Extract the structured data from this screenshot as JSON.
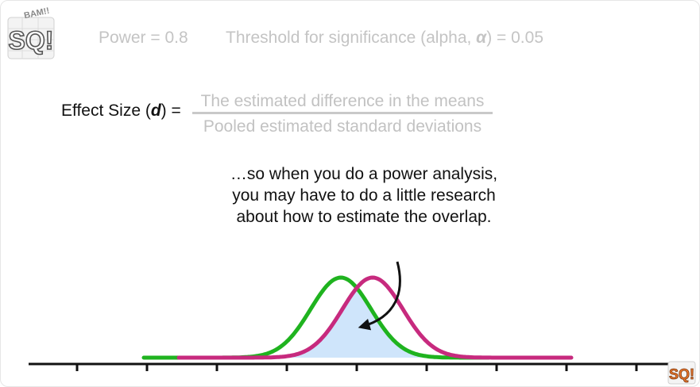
{
  "header": {
    "power_text": "Power = 0.8",
    "threshold_prefix": "Threshold for significance (alpha, ",
    "alpha_symbol": "α",
    "threshold_suffix": ") = 0.05"
  },
  "formula": {
    "label_prefix": "Effect Size (",
    "label_var": "d",
    "label_suffix": ") =",
    "numerator": "The estimated difference in the means",
    "denominator": "Pooled estimated standard deviations"
  },
  "callout": {
    "text": "…so when you do a power analysis, you may have to do a little research about how to estimate the overlap."
  },
  "logo": {
    "main_text": "SQ!",
    "banner_text": "BAM!!",
    "small_text": "SQ!"
  },
  "colors": {
    "green": "#1fb31f",
    "magenta": "#c72a7e",
    "overlap_fill": "#cfe5fb",
    "faded_text": "#c4c4c4",
    "axis": "#111111"
  }
}
